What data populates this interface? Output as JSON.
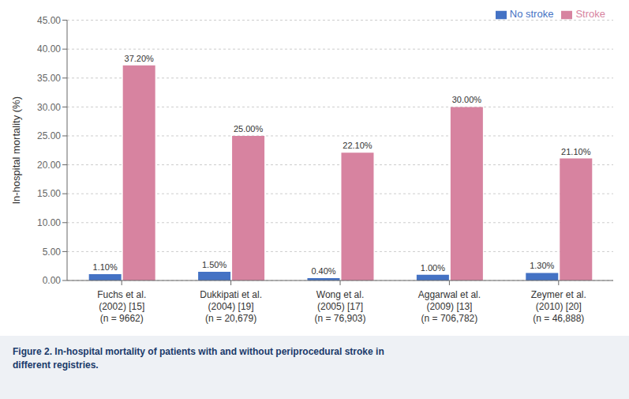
{
  "chart_data": {
    "type": "bar",
    "categories": [
      "Fuchs et al.\n(2002) [15]\n(n = 9662)",
      "Dukkipati et al.\n(2004) [19]\n(n = 20,679)",
      "Wong et al.\n(2005) [17]\n(n = 76,903)",
      "Aggarwal et al.\n(2009) [13]\n(n = 706,782)",
      "Zeymer et al.\n(2010) [20]\n(n = 46,888)"
    ],
    "series": [
      {
        "name": "No stroke",
        "color": "#4472c4",
        "values": [
          1.1,
          1.5,
          0.4,
          1.0,
          1.3
        ],
        "value_labels": [
          "1.10%",
          "1.50%",
          "0.40%",
          "1.00%",
          "1.30%"
        ]
      },
      {
        "name": "Stroke",
        "color": "#d783a0",
        "values": [
          37.2,
          25.0,
          22.1,
          30.0,
          21.1
        ],
        "value_labels": [
          "37.20%",
          "25.00%",
          "22.10%",
          "30.00%",
          "21.10%"
        ]
      }
    ],
    "ylabel": "In-hospital mortality (%)",
    "ylim": [
      0,
      45
    ],
    "yticks": [
      {
        "value": 0,
        "label": "0.00"
      },
      {
        "value": 5,
        "label": "5.00"
      },
      {
        "value": 10,
        "label": "10.00"
      },
      {
        "value": 15,
        "label": "15.00"
      },
      {
        "value": 20,
        "label": "20.00"
      },
      {
        "value": 25,
        "label": "25.00"
      },
      {
        "value": 30,
        "label": "30.00"
      },
      {
        "value": 35,
        "label": "35.00"
      },
      {
        "value": 40,
        "label": "40.00"
      },
      {
        "value": 45,
        "label": "45.00"
      }
    ],
    "grid": true,
    "legend": "upper right",
    "data_labels": true,
    "annotations": [
      "Figure 2. In-hospital mortality of patients with and without periprocedural stroke in\ndifferent registries."
    ]
  }
}
